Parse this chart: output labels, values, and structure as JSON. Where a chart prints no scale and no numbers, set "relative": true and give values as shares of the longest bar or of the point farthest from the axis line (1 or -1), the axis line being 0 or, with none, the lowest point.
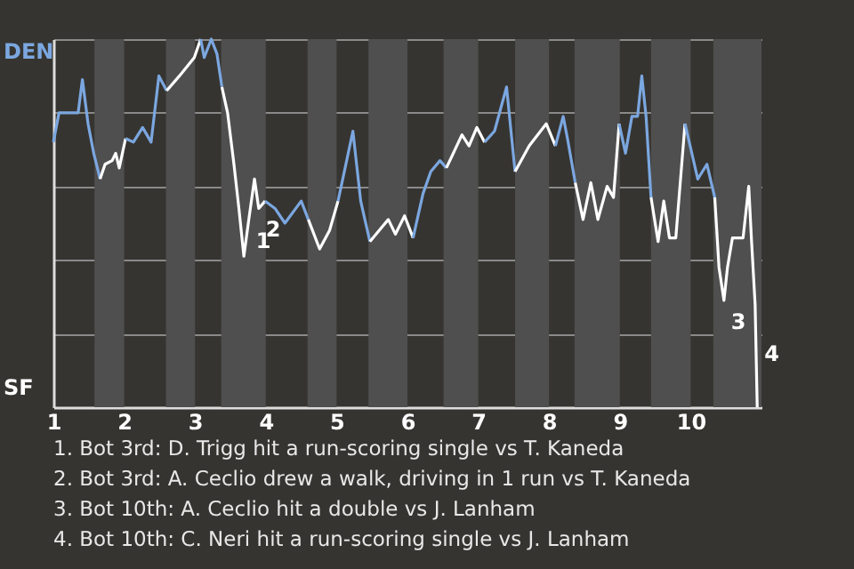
{
  "chart_data": {
    "type": "line",
    "relative": true,
    "grid": "y",
    "xlim": [
      1,
      11
    ],
    "xticks": [
      1,
      2,
      3,
      4,
      5,
      6,
      7,
      8,
      9,
      10
    ],
    "bands": [
      {
        "axis": "x",
        "from": 1.58,
        "to": 2,
        "color": "#4f4f4f"
      },
      {
        "axis": "x",
        "from": 2.59,
        "to": 3,
        "color": "#4f4f4f"
      },
      {
        "axis": "x",
        "from": 3.37,
        "to": 4,
        "color": "#4f4f4f"
      },
      {
        "axis": "x",
        "from": 4.59,
        "to": 5,
        "color": "#4f4f4f"
      },
      {
        "axis": "x",
        "from": 5.45,
        "to": 6,
        "color": "#4f4f4f"
      },
      {
        "axis": "x",
        "from": 6.51,
        "to": 7,
        "color": "#4f4f4f"
      },
      {
        "axis": "x",
        "from": 7.52,
        "to": 8,
        "color": "#4f4f4f"
      },
      {
        "axis": "x",
        "from": 8.36,
        "to": 9,
        "color": "#4f4f4f"
      },
      {
        "axis": "x",
        "from": 9.44,
        "to": 10,
        "color": "#4f4f4f"
      },
      {
        "axis": "x",
        "from": 10.32,
        "to": 11,
        "color": "#4f4f4f"
      }
    ],
    "series": [
      {
        "color": "#7ba7e0",
        "x": [
          1.0,
          1.04,
          1.08,
          1.35,
          1.41,
          1.49,
          1.57,
          1.66
        ],
        "values": [
          0.72,
          0.76,
          0.8,
          0.8,
          0.89,
          0.77,
          0.69,
          0.62
        ]
      },
      {
        "color": "#ffffff",
        "x": [
          1.66,
          1.73,
          1.83,
          1.88,
          1.93,
          2.02
        ],
        "values": [
          0.62,
          0.66,
          0.67,
          0.69,
          0.65,
          0.73
        ]
      },
      {
        "color": "#7ba7e0",
        "x": [
          2.02,
          2.13,
          2.26,
          2.38,
          2.49,
          2.6
        ],
        "values": [
          0.73,
          0.72,
          0.76,
          0.72,
          0.9,
          0.86
        ]
      },
      {
        "color": "#ffffff",
        "x": [
          2.6,
          2.78,
          2.99,
          3.08
        ],
        "values": [
          0.86,
          0.9,
          0.95,
          1
        ]
      },
      {
        "color": "#7ba7e0",
        "x": [
          3.08,
          3.13,
          3.23,
          3.31,
          3.38
        ],
        "values": [
          1,
          0.95,
          1,
          0.96,
          0.87
        ]
      },
      {
        "color": "#ffffff",
        "x": [
          3.38,
          3.46,
          3.55,
          3.62,
          3.69,
          3.76,
          3.84,
          3.9,
          3.99
        ],
        "values": [
          0.87,
          0.8,
          0.66,
          0.54,
          0.41,
          0.51,
          0.62,
          0.54,
          0.56
        ]
      },
      {
        "color": "#7ba7e0",
        "x": [
          3.99,
          4.13,
          4.27,
          4.5,
          4.6
        ],
        "values": [
          0.56,
          0.54,
          0.5,
          0.56,
          0.51
        ]
      },
      {
        "color": "#ffffff",
        "x": [
          4.6,
          4.76,
          4.9,
          5.02
        ],
        "values": [
          0.51,
          0.43,
          0.48,
          0.56
        ]
      },
      {
        "color": "#7ba7e0",
        "x": [
          5.02,
          5.12,
          5.23,
          5.34,
          5.47
        ],
        "values": [
          0.56,
          0.65,
          0.75,
          0.56,
          0.45
        ]
      },
      {
        "color": "#ffffff",
        "x": [
          5.47,
          5.73,
          5.83,
          5.96,
          6.08
        ],
        "values": [
          0.45,
          0.51,
          0.47,
          0.52,
          0.46
        ]
      },
      {
        "color": "#7ba7e0",
        "x": [
          6.08,
          6.22,
          6.33,
          6.46,
          6.55
        ],
        "values": [
          0.46,
          0.58,
          0.64,
          0.67,
          0.65
        ]
      },
      {
        "color": "#ffffff",
        "x": [
          6.55,
          6.77,
          6.87,
          6.98,
          7.09
        ],
        "values": [
          0.65,
          0.74,
          0.71,
          0.76,
          0.72
        ]
      },
      {
        "color": "#7ba7e0",
        "x": [
          7.09,
          7.23,
          7.4,
          7.52
        ],
        "values": [
          0.72,
          0.75,
          0.87,
          0.64
        ]
      },
      {
        "color": "#ffffff",
        "x": [
          7.52,
          7.72,
          7.96,
          8.09
        ],
        "values": [
          0.64,
          0.71,
          0.77,
          0.71
        ]
      },
      {
        "color": "#7ba7e0",
        "x": [
          8.09,
          8.2,
          8.26,
          8.37
        ],
        "values": [
          0.71,
          0.79,
          0.73,
          0.61
        ]
      },
      {
        "color": "#ffffff",
        "x": [
          8.37,
          8.48,
          8.59,
          8.69,
          8.82,
          8.91,
          8.99
        ],
        "values": [
          0.61,
          0.51,
          0.61,
          0.51,
          0.6,
          0.57,
          0.77
        ]
      },
      {
        "color": "#7ba7e0",
        "x": [
          8.99,
          9.08,
          9.17,
          9.25,
          9.31,
          9.37,
          9.44
        ],
        "values": [
          0.77,
          0.69,
          0.79,
          0.79,
          0.9,
          0.79,
          0.57
        ]
      },
      {
        "color": "#ffffff",
        "x": [
          9.44,
          9.54,
          9.62,
          9.7,
          9.79,
          9.92
        ],
        "values": [
          0.57,
          0.45,
          0.56,
          0.46,
          0.46,
          0.77
        ]
      },
      {
        "color": "#7ba7e0",
        "x": [
          9.92,
          10.1,
          10.23,
          10.34
        ],
        "values": [
          0.77,
          0.62,
          0.66,
          0.57
        ]
      },
      {
        "color": "#ffffff",
        "x": [
          10.34,
          10.4,
          10.47,
          10.52,
          10.59,
          10.74,
          10.82,
          10.86,
          10.91,
          10.94
        ],
        "values": [
          0.57,
          0.38,
          0.29,
          0.38,
          0.46,
          0.46,
          0.6,
          0.45,
          0.28,
          0
        ]
      }
    ],
    "annotations": [
      {
        "text": "1",
        "x": 3.76,
        "y": 0.51
      },
      {
        "text": "2",
        "x": 3.9,
        "y": 0.54
      },
      {
        "text": "3",
        "x": 10.47,
        "y": 0.29
      },
      {
        "text": "4",
        "x": 10.94,
        "y": 0
      },
      "DEN",
      "SF",
      "1. Bot 3rd: D. Trigg hit a run-scoring single vs T. Kaneda",
      "2. Bot 3rd: A. Ceclio drew a walk, driving in 1 run vs T. Kaneda",
      "3. Bot 10th: A. Ceclio hit a double vs J. Lanham",
      "4. Bot 10th: C. Neri hit a run-scoring single vs J. Lanham"
    ]
  }
}
